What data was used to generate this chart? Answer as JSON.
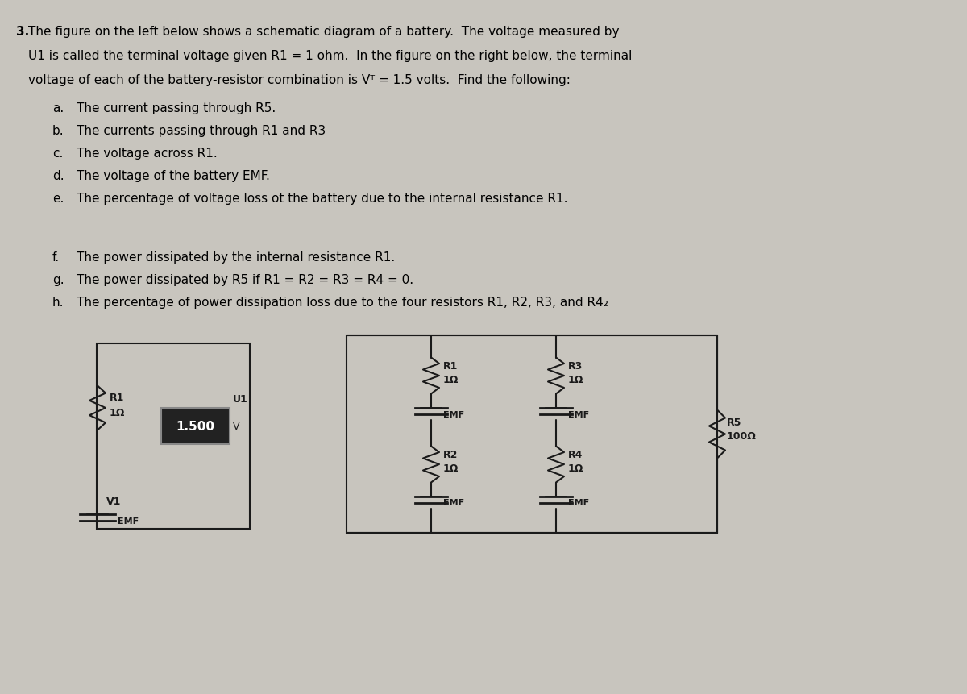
{
  "background_color": "#d0cdc8",
  "text_color": "#000000",
  "title_number": "3.",
  "main_text_lines": [
    "The figure on the left below shows a schematic diagram of a battery.  The voltage measured by",
    "U1 is called the terminal voltage given R1 = 1 ohm.  In the figure on the right below, the terminal",
    "voltage of each of the battery-resistor combination is Vᵀ = 1.5 volts.  Find the following:"
  ],
  "sub_items": [
    [
      "a.",
      "The current passing through R5."
    ],
    [
      "b.",
      "The currents passing through R1 and R3"
    ],
    [
      "c.",
      "The voltage across R1."
    ],
    [
      "d.",
      "The voltage of the battery EMF."
    ],
    [
      "e.",
      "The percentage of voltage loss ot the battery due to the internal resistance R1."
    ],
    [
      "",
      ""
    ],
    [
      "f.",
      "The power dissipated by the internal resistance R1."
    ],
    [
      "g.",
      "The power dissipated by R5 if R1 = R2 = R3 = R4 = 0."
    ],
    [
      "h.",
      "The percentage of power dissipation loss due to the four resistors R1, R2, R3, and R4₂"
    ]
  ],
  "diagram_bg": "#c8c5be",
  "voltmeter_color": "#1a1a1a",
  "voltmeter_text": "1.500",
  "voltmeter_label": "V",
  "wire_color": "#1a1a1a",
  "resistor_color": "#1a1a1a",
  "battery_color": "#1a1a1a"
}
